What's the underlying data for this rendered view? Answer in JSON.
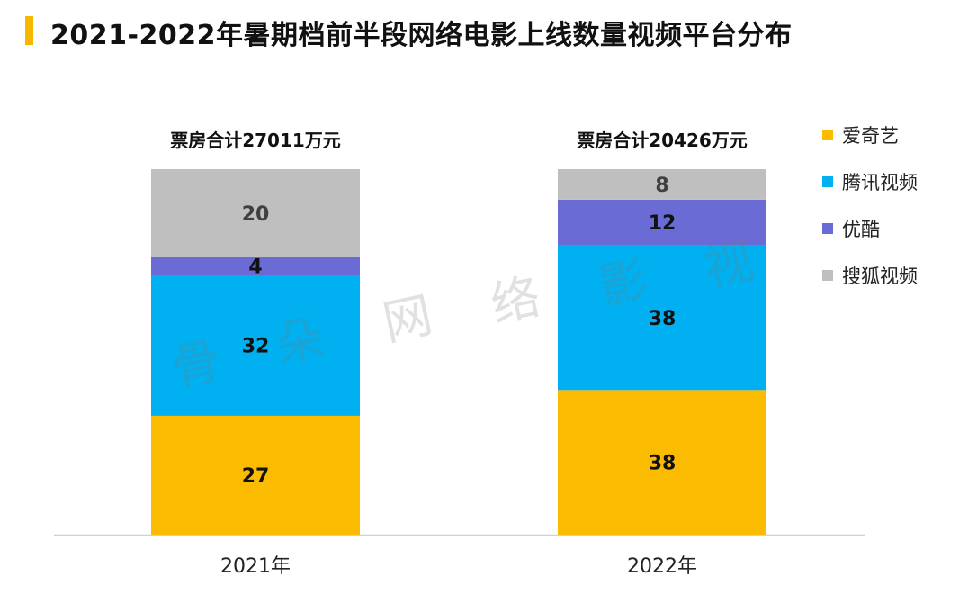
{
  "title": "2021-2022年暑期档前半段网络电影上线数量视频平台分布",
  "accent_color": "#f5b800",
  "watermark_chars": [
    "骨",
    "朵",
    "网",
    "络",
    "影",
    "视"
  ],
  "chart_data": {
    "type": "bar",
    "stacked": true,
    "categories": [
      "2021年",
      "2022年"
    ],
    "bar_titles": [
      "票房合计27011万元",
      "票房合计20426万元"
    ],
    "series": [
      {
        "name": "爱奇艺",
        "color": "#fbbb00",
        "values": [
          27,
          38
        ]
      },
      {
        "name": "腾讯视频",
        "color": "#00b0f0",
        "values": [
          32,
          38
        ]
      },
      {
        "name": "优酷",
        "color": "#6b6bd6",
        "values": [
          4,
          12
        ]
      },
      {
        "name": "搜狐视频",
        "color": "#bfbfbf",
        "values": [
          20,
          8
        ]
      }
    ],
    "legend_position": "right",
    "grid": false
  }
}
